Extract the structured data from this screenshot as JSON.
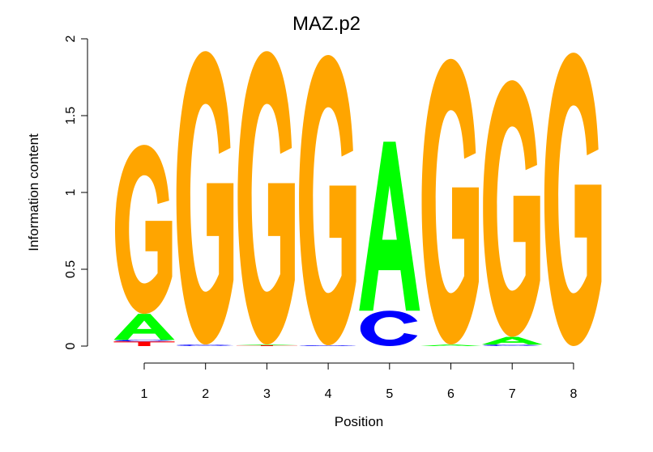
{
  "chart_data": {
    "type": "sequence-logo",
    "title": "MAZ.p2",
    "xlabel": "Position",
    "ylabel": "Information content",
    "ylim": [
      0,
      2
    ],
    "y_ticks": [
      "0",
      "0.5",
      "1",
      "1.5",
      "2"
    ],
    "positions": [
      "1",
      "2",
      "3",
      "4",
      "5",
      "6",
      "7",
      "8"
    ],
    "colors": {
      "A": "#00ff00",
      "C": "#0000ff",
      "G": "#ffa500",
      "T": "#ff0000"
    },
    "letters_by_position": [
      [
        {
          "base": "T",
          "height": 0.03
        },
        {
          "base": "C",
          "height": 0.01
        },
        {
          "base": "A",
          "height": 0.17
        },
        {
          "base": "G",
          "height": 1.1
        }
      ],
      [
        {
          "base": "C",
          "height": 0.01
        },
        {
          "base": "G",
          "height": 1.91
        }
      ],
      [
        {
          "base": "T",
          "height": 0.005
        },
        {
          "base": "A",
          "height": 0.005
        },
        {
          "base": "G",
          "height": 1.91
        }
      ],
      [
        {
          "base": "C",
          "height": 0.005
        },
        {
          "base": "G",
          "height": 1.89
        }
      ],
      [
        {
          "base": "C",
          "height": 0.23
        },
        {
          "base": "A",
          "height": 1.1
        }
      ],
      [
        {
          "base": "A",
          "height": 0.01
        },
        {
          "base": "G",
          "height": 1.86
        }
      ],
      [
        {
          "base": "C",
          "height": 0.01
        },
        {
          "base": "A",
          "height": 0.05
        },
        {
          "base": "G",
          "height": 1.67
        }
      ],
      [
        {
          "base": "G",
          "height": 1.91
        }
      ]
    ]
  }
}
